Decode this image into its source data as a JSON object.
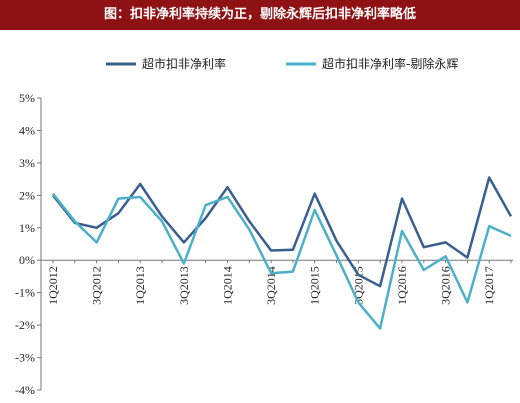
{
  "colors": {
    "title_bg": "#8e1113",
    "series1": "#3a5f8f",
    "series2": "#4bb0c8"
  },
  "chart_data": {
    "type": "line",
    "title": "图：扣非净利率持续为正，剔除永辉后扣非净利率略低",
    "xlabel": "",
    "ylabel": "",
    "ylim": [
      -4,
      5
    ],
    "ytick_labels": [
      "5%",
      "4%",
      "3%",
      "2%",
      "1%",
      "0%",
      "-1%",
      "-2%",
      "-3%",
      "-4%"
    ],
    "legend_position": "top",
    "grid": false,
    "categories": [
      "1Q2012",
      "2Q2012",
      "3Q2012",
      "4Q2012",
      "1Q2013",
      "2Q2013",
      "3Q2013",
      "4Q2013",
      "1Q2014",
      "2Q2014",
      "3Q2014",
      "4Q2014",
      "1Q2015",
      "2Q2015",
      "3Q2015",
      "4Q2015",
      "1Q2016",
      "2Q2016",
      "3Q2016",
      "4Q2016",
      "1Q2017",
      "2Q2017"
    ],
    "x_tick_labels_shown": [
      "1Q2012",
      "3Q2012",
      "1Q2013",
      "3Q2013",
      "1Q2014",
      "3Q2014",
      "1Q2015",
      "3Q2015",
      "1Q2016",
      "3Q2016",
      "1Q2017"
    ],
    "series": [
      {
        "name": "超市扣非净利率",
        "color": "#3a5f8f",
        "values": [
          2.0,
          1.15,
          1.0,
          1.45,
          2.35,
          1.35,
          0.55,
          1.3,
          2.25,
          1.2,
          0.3,
          0.32,
          2.05,
          0.6,
          -0.45,
          -0.8,
          1.9,
          0.4,
          0.55,
          0.08,
          2.55,
          1.35
        ]
      },
      {
        "name": "超市扣非净利率-剔除永辉",
        "color": "#4bb0c8",
        "values": [
          2.05,
          1.2,
          0.55,
          1.9,
          1.95,
          1.2,
          -0.1,
          1.7,
          1.95,
          0.95,
          -0.4,
          -0.35,
          1.55,
          0.15,
          -1.3,
          -2.1,
          0.9,
          -0.3,
          0.12,
          -1.3,
          1.05,
          0.75
        ]
      }
    ]
  }
}
